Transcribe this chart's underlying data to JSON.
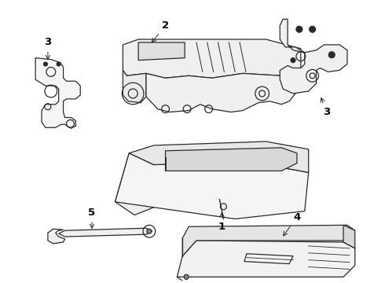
{
  "background_color": "#ffffff",
  "line_color": "#2a2a2a",
  "figsize": [
    4.9,
    3.6
  ],
  "dpi": 100
}
